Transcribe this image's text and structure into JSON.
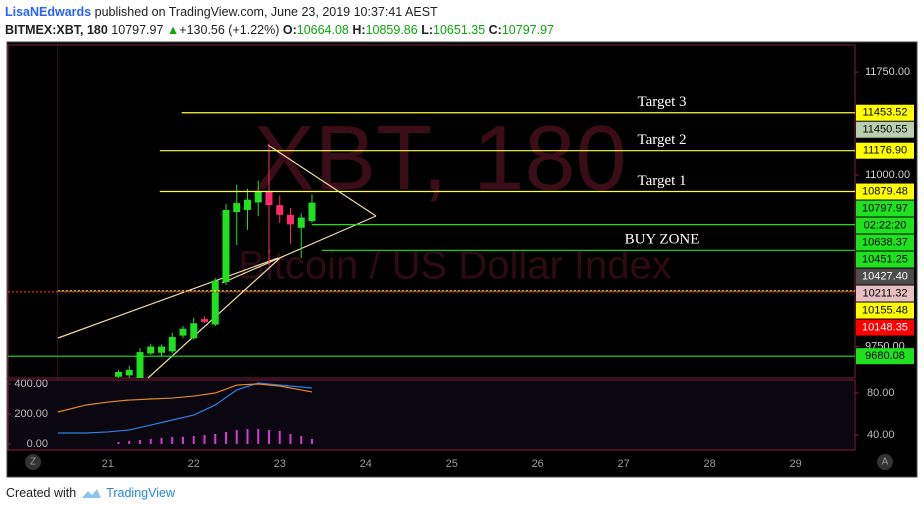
{
  "header": {
    "author": "LisaNEdwards",
    "published": "published on TradingView.com, June 23, 2019 10:37:41 AEST",
    "symbol": "BITMEX:XBT, 180",
    "last": "10797.97",
    "change": "+130.56 (+1.22%)",
    "o_label": "O:",
    "o": "10664.08",
    "h_label": "H:",
    "h": "10859.86",
    "l_label": "L:",
    "l": "10651.35",
    "c_label": "C:",
    "c": "10797.97"
  },
  "footer": {
    "created": "Created with",
    "brand": "TradingView"
  },
  "chart_data": [
    {
      "type": "candlestick",
      "watermark": "XBT, 180",
      "watermark_subtitle": "Bitcoin / US Dollar Index",
      "up_color": "#1fe11f",
      "down_color": "#ff2a68",
      "x": [
        21.125,
        21.25,
        21.375,
        21.5,
        21.625,
        21.75,
        21.875,
        22,
        22.125,
        22.25,
        22.375,
        22.5,
        22.625,
        22.75,
        22.875,
        23,
        23.125,
        23.25,
        23.375
      ],
      "open": [
        9530,
        9540,
        9520,
        9700,
        9705,
        9715,
        9830,
        9810,
        9950,
        9910,
        10220,
        10730,
        10745,
        10800,
        10880,
        10780,
        10710,
        10615,
        10664.08
      ],
      "high": [
        9580,
        9610,
        9740,
        9770,
        9765,
        9850,
        9900,
        9960,
        9970,
        10250,
        10790,
        10930,
        10900,
        10960,
        11230,
        10850,
        10760,
        10720,
        10859.86
      ],
      "low": [
        9500,
        9520,
        9510,
        9690,
        9680,
        9700,
        9810,
        9800,
        9920,
        9900,
        10200,
        10490,
        10600,
        10700,
        10345,
        10650,
        10500,
        10395,
        10651.35
      ],
      "close": [
        9565,
        9580,
        9710,
        9750,
        9750,
        9820,
        9880,
        9920,
        9930,
        10230,
        10745,
        10795,
        10820,
        10880,
        10780,
        10710,
        10640,
        10690,
        10797.97
      ],
      "xlim": [
        19.84,
        29.69
      ],
      "xticks": [
        21,
        22,
        23,
        24,
        25,
        26,
        27,
        28,
        29
      ],
      "ylim": [
        9521,
        11947
      ],
      "yticks": [
        {
          "value": 9750,
          "label": "9750.00"
        },
        {
          "value": 11000,
          "label": "11000.00"
        },
        {
          "value": 11750,
          "label": "11750.00"
        }
      ],
      "levels": [
        {
          "value": 11453.52,
          "label": "11453.52",
          "tag_color": "#ffff00",
          "text_color": "#000000",
          "line_color": "#ffff33",
          "from": 21.86,
          "note": "Target 3"
        },
        {
          "value": 11450.55,
          "label": "11450.55",
          "tag_color": "#b9cfb0",
          "text_color": "#000000"
        },
        {
          "value": 11176.9,
          "label": "11176.90",
          "tag_color": "#ffff00",
          "text_color": "#000000",
          "line_color": "#ffff33",
          "from": 21.605,
          "note": "Target 2"
        },
        {
          "value": 10879.48,
          "label": "10879.48",
          "tag_color": "#ffff00",
          "text_color": "#000000",
          "line_color": "#ffff33",
          "from": 21.605,
          "note": "Target 1"
        },
        {
          "value": 10797.97,
          "label": "10797.97",
          "tag_color": "#1fe11f",
          "text_color": "#000000",
          "countdown": "02:22:20"
        },
        {
          "value": 10638.37,
          "label": "10638.37",
          "tag_color": "#1fe11f",
          "text_color": "#000000",
          "line_color": "#1fe11f",
          "from": 23.372
        },
        {
          "value": 10451.25,
          "label": "10451.25",
          "tag_color": "#1fe11f",
          "text_color": "#000000",
          "line_color": "#1fe11f",
          "from": 23.49,
          "note": "BUY ZONE"
        },
        {
          "value": 10427.4,
          "label": "10427.40",
          "tag_color": "#4d4d4d",
          "text_color": "#ffffff"
        },
        {
          "value": 10211.32,
          "label": "10211.32",
          "tag_color": "#e8c0c4",
          "text_color": "#000000"
        },
        {
          "value": 10155.48,
          "label": "10155.48",
          "tag_color": "#ffff00",
          "text_color": "#000000",
          "line_color": "#ffff33",
          "from": 20.42,
          "dash": true
        },
        {
          "value": 10148.35,
          "label": "10148.35",
          "tag_color": "#ff0000",
          "text_color": "#ffffff",
          "line_color": "#ff2020",
          "from": 19.84,
          "dash": true
        },
        {
          "value": 9680.08,
          "label": "9680.08",
          "tag_color": "#1fe11f",
          "text_color": "#000000",
          "line_color": "#1fe11f",
          "from": 19.84
        }
      ]
    },
    {
      "type": "indicator",
      "ylim": [
        -40,
        426.7
      ],
      "yticks": [
        {
          "value": 0,
          "label": "0.00"
        },
        {
          "value": 200,
          "label": "200.00"
        },
        {
          "value": 400,
          "label": "400.00"
        }
      ],
      "y2lim": [
        25.7,
        92.4
      ],
      "y2ticks": [
        {
          "value": 40,
          "label": "40.00"
        },
        {
          "value": 80,
          "label": "80.00"
        }
      ],
      "histogram": {
        "color": "#d63bd6",
        "x": [
          21.125,
          21.25,
          21.375,
          21.5,
          21.625,
          21.75,
          21.875,
          22,
          22.125,
          22.25,
          22.375,
          22.5,
          22.625,
          22.75,
          22.875,
          23,
          23.125,
          23.25,
          23.375
        ],
        "values": [
          13,
          20,
          27,
          33,
          40,
          47,
          47,
          53,
          60,
          67,
          80,
          93,
          100,
          100,
          93,
          87,
          67,
          53,
          33
        ]
      },
      "series": [
        {
          "color": "#2f7fe0",
          "axis": "y2",
          "x": [
            20.42,
            20.75,
            21.0,
            21.25,
            21.5,
            21.75,
            22.0,
            22.25,
            22.5,
            22.75,
            23.0,
            23.25,
            23.375
          ],
          "values": [
            41.9,
            41.9,
            42.9,
            44.8,
            49.5,
            54.3,
            59.0,
            68.6,
            82.9,
            89.5,
            87.6,
            85.7,
            84.8
          ]
        },
        {
          "color": "#e08a2c",
          "axis": "y2",
          "x": [
            20.42,
            20.75,
            21.0,
            21.25,
            21.5,
            21.75,
            22.0,
            22.25,
            22.5,
            22.75,
            23.0,
            23.25,
            23.375
          ],
          "values": [
            61.9,
            68.6,
            71.4,
            73.3,
            74.3,
            75.2,
            77.1,
            80.0,
            87.6,
            88.6,
            86.7,
            82.9,
            81.0
          ]
        }
      ]
    }
  ]
}
